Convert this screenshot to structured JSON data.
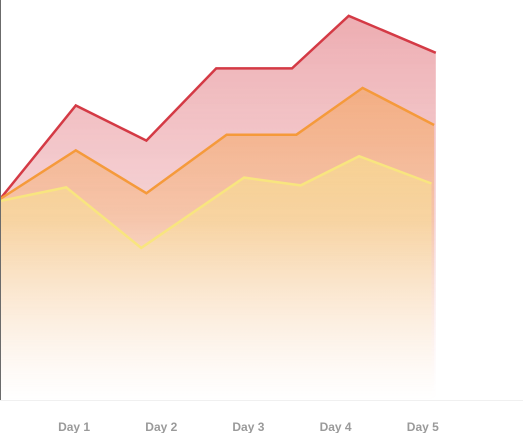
{
  "chart_data": {
    "type": "area",
    "categories": [
      "",
      "Day 1",
      "Day 2",
      "Day 3",
      "Day 4",
      "Day 5"
    ],
    "x": [
      0,
      1,
      2,
      3,
      4,
      5
    ],
    "x_tick_labels": [
      {
        "x": 0.85,
        "label": "Day 1"
      },
      {
        "x": 1.85,
        "label": "Day 2"
      },
      {
        "x": 2.85,
        "label": "Day 3"
      },
      {
        "x": 3.85,
        "label": "Day 4"
      },
      {
        "x": 4.85,
        "label": "Day 5"
      }
    ],
    "series": [
      {
        "color": "#d43a45",
        "points": [
          [
            0,
            51.5
          ],
          [
            0.87,
            75.5
          ],
          [
            1.68,
            66.5
          ],
          [
            2.48,
            85
          ],
          [
            3.35,
            85
          ],
          [
            4.0,
            98.5
          ],
          [
            5.0,
            89
          ]
        ]
      },
      {
        "color": "#f59a3b",
        "points": [
          [
            0,
            51.5
          ],
          [
            0.87,
            64
          ],
          [
            1.68,
            53
          ],
          [
            2.6,
            68
          ],
          [
            3.4,
            68
          ],
          [
            4.16,
            80
          ],
          [
            4.98,
            70.5
          ]
        ]
      },
      {
        "color": "#f8e57f",
        "points": [
          [
            0,
            51
          ],
          [
            0.76,
            54.5
          ],
          [
            1.62,
            39
          ],
          [
            2.8,
            57
          ],
          [
            3.45,
            55
          ],
          [
            4.12,
            62.5
          ],
          [
            4.95,
            55.5
          ]
        ]
      }
    ],
    "xlim": [
      0,
      6
    ],
    "ylim": [
      0,
      101
    ],
    "grid": false,
    "legend": "none",
    "title": "",
    "xlabel": "",
    "ylabel": ""
  }
}
